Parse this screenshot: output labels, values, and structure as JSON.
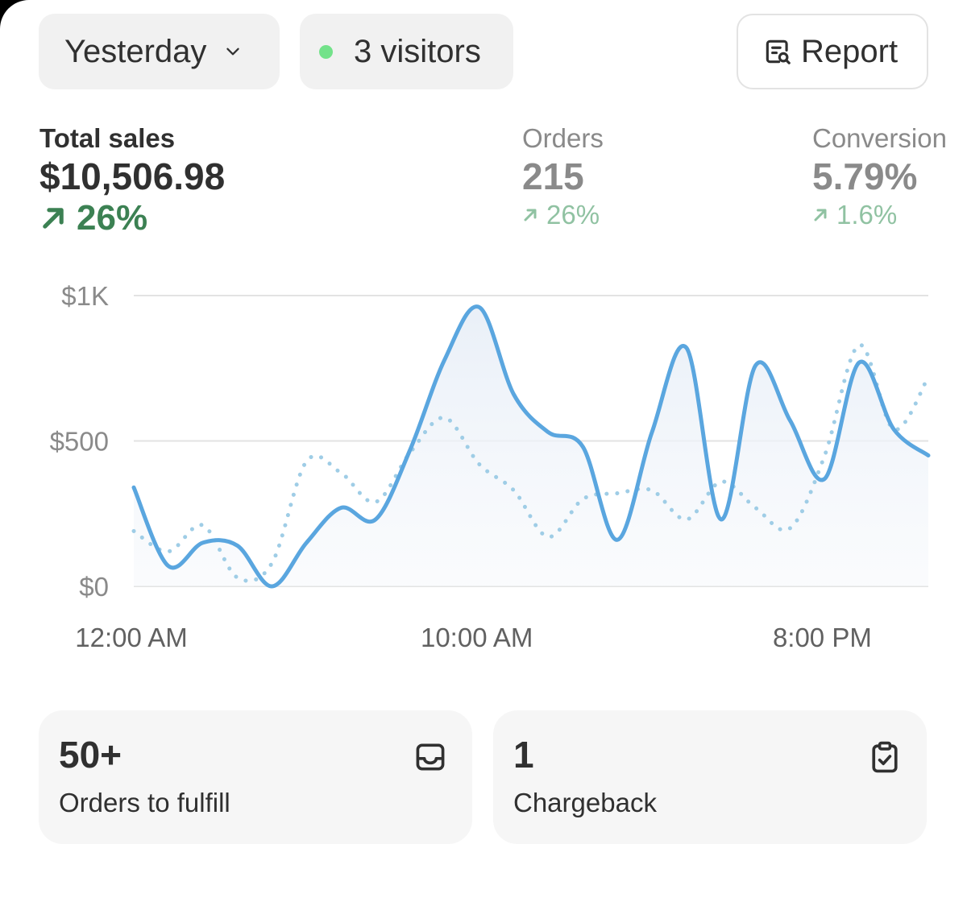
{
  "header": {
    "date_range": "Yesterday",
    "visitors": "3 visitors",
    "report_label": "Report"
  },
  "metrics": {
    "total_sales": {
      "label": "Total sales",
      "value": "$10,506.98",
      "delta": "26%"
    },
    "orders": {
      "label": "Orders",
      "value": "215",
      "delta": "26%"
    },
    "conversion": {
      "label": "Conversion",
      "value": "5.79%",
      "delta": "1.6%"
    }
  },
  "colors": {
    "current_line": "#5aa6df",
    "previous_line": "#9fcde6",
    "positive_delta": "#3c8153",
    "positive_delta_muted": "#90c2a2",
    "live_dot": "#73e28a"
  },
  "chart_data": {
    "type": "line",
    "ylim": [
      0,
      1000
    ],
    "y_ticks": [
      {
        "value": 1000,
        "label": "$1K"
      },
      {
        "value": 500,
        "label": "$500"
      },
      {
        "value": 0,
        "label": "$0"
      }
    ],
    "x_range": [
      0,
      23
    ],
    "x_ticks": [
      {
        "value": 0,
        "label": "12:00 AM"
      },
      {
        "value": 10,
        "label": "10:00 AM"
      },
      {
        "value": 20,
        "label": "8:00 PM"
      }
    ],
    "x": [
      0,
      1,
      2,
      3,
      4,
      5,
      6,
      7,
      8,
      9,
      10,
      11,
      12,
      13,
      14,
      15,
      16,
      17,
      18,
      19,
      20,
      21,
      22,
      23
    ],
    "series": [
      {
        "style": "solid",
        "values": [
          340,
          70,
          150,
          140,
          0,
          150,
          270,
          230,
          470,
          780,
          960,
          660,
          530,
          480,
          160,
          530,
          820,
          230,
          760,
          570,
          370,
          770,
          540,
          450
        ]
      },
      {
        "style": "dotted",
        "values": [
          190,
          120,
          210,
          30,
          80,
          430,
          390,
          290,
          460,
          580,
          420,
          330,
          170,
          300,
          320,
          330,
          230,
          360,
          270,
          200,
          450,
          830,
          540,
          720
        ]
      }
    ],
    "grid": true,
    "legend": "none"
  },
  "tiles": [
    {
      "value": "50+",
      "label": "Orders to fulfill",
      "icon": "inbox-icon"
    },
    {
      "value": "1",
      "label": "Chargeback",
      "icon": "clipboard-check-icon"
    }
  ]
}
